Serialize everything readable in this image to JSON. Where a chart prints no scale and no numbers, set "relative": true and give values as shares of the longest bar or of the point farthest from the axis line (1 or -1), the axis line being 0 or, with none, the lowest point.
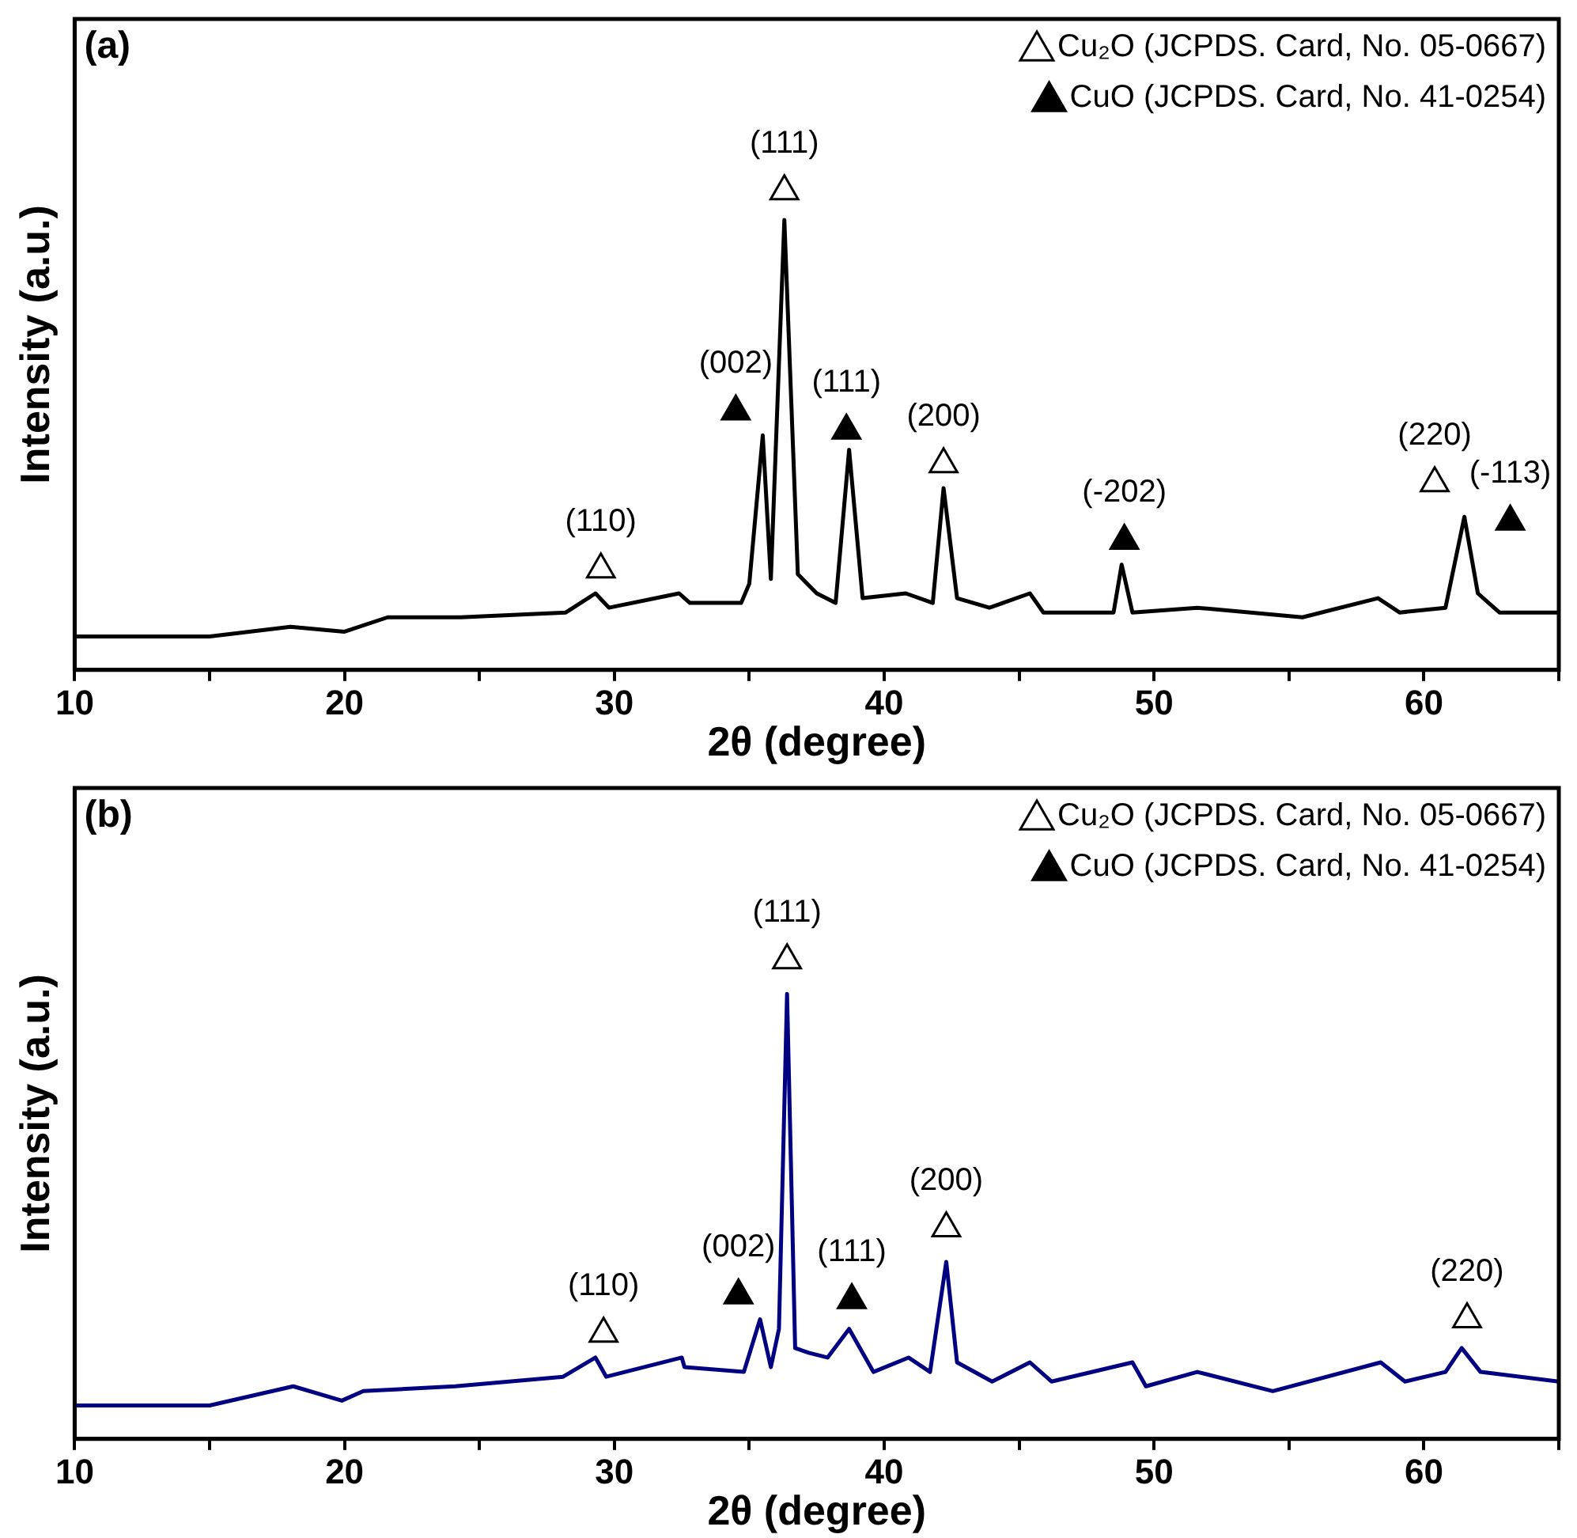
{
  "chart_data": [
    {
      "type": "line",
      "title": "(a)",
      "xlabel": "2θ (degree)",
      "ylabel": "Intensity (a.u.)",
      "relative": true,
      "legend": "top right",
      "xlim": [
        10,
        65
      ],
      "xticks": [
        10,
        {
          "value": 15,
          "label": null
        },
        20,
        {
          "value": 25,
          "label": null
        },
        30,
        {
          "value": 35,
          "label": null
        },
        40,
        {
          "value": 45,
          "label": null
        },
        50,
        {
          "value": 55,
          "label": null
        },
        60,
        {
          "value": 65,
          "label": null
        }
      ],
      "series": [
        {
          "color": "#000000",
          "x": [
            10,
            15,
            18,
            20,
            21.6,
            24.3,
            28.2,
            29.3,
            29.8,
            32.4,
            32.8,
            34.7,
            35.0,
            35.5,
            35.8,
            36.3,
            36.8,
            37.5,
            38.2,
            38.7,
            39.2,
            40.8,
            41.8,
            42.2,
            42.7,
            43.9,
            45.4,
            45.9,
            48.5,
            48.8,
            49.2,
            51.6,
            55.5,
            58.3,
            59.1,
            60.8,
            61.5,
            62,
            62.8,
            65
          ],
          "values": [
            0.07,
            0.07,
            0.09,
            0.08,
            0.11,
            0.11,
            0.12,
            0.16,
            0.13,
            0.16,
            0.14,
            0.14,
            0.18,
            0.49,
            0.19,
            0.94,
            0.2,
            0.16,
            0.14,
            0.46,
            0.15,
            0.16,
            0.14,
            0.38,
            0.15,
            0.13,
            0.16,
            0.12,
            0.12,
            0.22,
            0.12,
            0.13,
            0.11,
            0.15,
            0.12,
            0.13,
            0.32,
            0.16,
            0.12,
            0.12
          ]
        },
        {
          "type": "scatter",
          "name": "Cu₂O (JCPDS. Card, No. 05-0667)",
          "color": "#ffffff",
          "marker": "triangle",
          "x": [
            29.5,
            36.3,
            42.2,
            60.4
          ],
          "values": [
            0.21,
            1,
            0.43,
            0.39
          ]
        },
        {
          "type": "scatter",
          "name": "CuO (JCPDS. Card, No. 41-0254)",
          "color": "#000000",
          "marker": "triangle",
          "x": [
            34.5,
            38.6,
            48.9,
            63.2
          ],
          "values": [
            0.54,
            0.5,
            0.27,
            0.31
          ]
        }
      ],
      "annotations": [
        "(110)",
        "(002)",
        "(111)",
        "(111)",
        "(200)",
        "(-202)",
        "(220)",
        "(-113)"
      ]
    },
    {
      "type": "line",
      "title": "(b)",
      "xlabel": "2θ (degree)",
      "ylabel": "Intensity (a.u.)",
      "relative": true,
      "legend": "top right",
      "xlim": [
        10,
        65
      ],
      "xticks": [
        10,
        {
          "value": 15,
          "label": null
        },
        20,
        {
          "value": 25,
          "label": null
        },
        30,
        {
          "value": 35,
          "label": null
        },
        40,
        {
          "value": 45,
          "label": null
        },
        50,
        {
          "value": 55,
          "label": null
        },
        60,
        {
          "value": 65,
          "label": null
        }
      ],
      "series": [
        {
          "color": "#000080",
          "x": [
            10,
            15,
            18.1,
            19.9,
            20.7,
            24.1,
            28.1,
            29.3,
            29.7,
            32.5,
            32.6,
            34.8,
            35.4,
            35.8,
            36.1,
            36.4,
            36.7,
            37.2,
            37.9,
            38.7,
            39.6,
            40.9,
            41.7,
            42.3,
            42.7,
            44,
            45.4,
            46.2,
            49.2,
            49.7,
            51.6,
            54.4,
            58.4,
            59.3,
            60.8,
            61.4,
            62.1,
            65
          ],
          "values": [
            0.07,
            0.07,
            0.11,
            0.08,
            0.1,
            0.11,
            0.13,
            0.17,
            0.13,
            0.17,
            0.15,
            0.14,
            0.25,
            0.15,
            0.23,
            0.93,
            0.19,
            0.18,
            0.17,
            0.23,
            0.14,
            0.17,
            0.14,
            0.37,
            0.16,
            0.12,
            0.16,
            0.12,
            0.16,
            0.11,
            0.14,
            0.1,
            0.16,
            0.12,
            0.14,
            0.19,
            0.14,
            0.12
          ]
        },
        {
          "type": "scatter",
          "name": "Cu₂O (JCPDS. Card, No. 05-0667)",
          "color": "#ffffff",
          "marker": "triangle",
          "x": [
            29.6,
            36.4,
            42.3,
            61.6
          ],
          "values": [
            0.22,
            1,
            0.44,
            0.25
          ]
        },
        {
          "type": "scatter",
          "name": "CuO (JCPDS. Card, No. 41-0254)",
          "color": "#000000",
          "marker": "triangle",
          "x": [
            34.6,
            38.8
          ],
          "values": [
            0.3,
            0.29
          ]
        }
      ],
      "annotations": [
        "(110)",
        "(002)",
        "(111)",
        "(111)",
        "(200)",
        "(220)"
      ]
    }
  ]
}
